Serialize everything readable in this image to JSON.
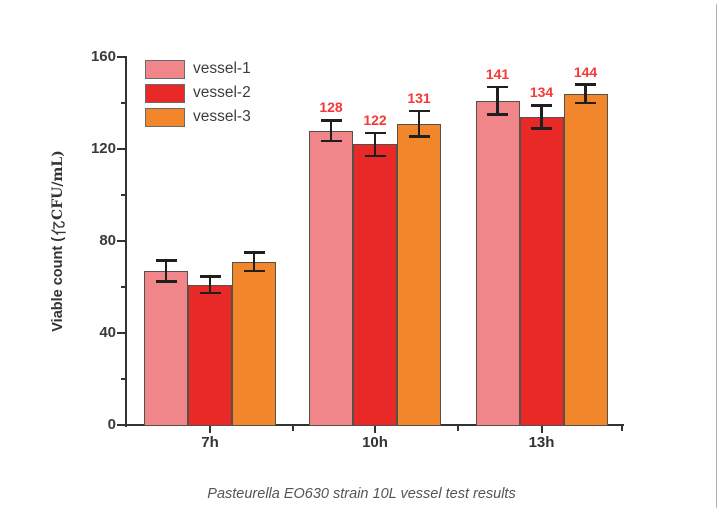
{
  "page": {
    "background": "#ffffff",
    "right_border_color": "#8f8f8f"
  },
  "caption": "Pasteurella EO630 strain 10L vessel test results",
  "labels": {
    "ylabel_prefix": "Viable count (",
    "ylabel_unit": "CFU/mL)"
  },
  "chart_data": {
    "type": "bar",
    "title": "",
    "xlabel": "",
    "ylabel": "Viable count (亿CFU/mL)",
    "ylim": [
      0,
      160
    ],
    "yticks": [
      0,
      40,
      80,
      120,
      160
    ],
    "minor_yticks": [
      20,
      60,
      100,
      140
    ],
    "categories": [
      "7h",
      "10h",
      "13h"
    ],
    "grid": false,
    "legend_position": "top-left inside plot",
    "axis_color": "#333333",
    "bar_border_color": "#55504a",
    "error_bar_color": "#1f1f1f",
    "value_label_color": "#f73737",
    "series": [
      {
        "name": "vessel-1",
        "color": "#F1868A",
        "values": [
          67,
          128,
          141
        ],
        "errors": [
          4.5,
          4.5,
          6
        ],
        "value_labels": [
          null,
          "128",
          "141"
        ]
      },
      {
        "name": "vessel-2",
        "color": "#E92828",
        "values": [
          61,
          122,
          134
        ],
        "errors": [
          3.5,
          5,
          5
        ],
        "value_labels": [
          null,
          "122",
          "134"
        ]
      },
      {
        "name": "vessel-3",
        "color": "#F1862B",
        "values": [
          71,
          131,
          144
        ],
        "errors": [
          4,
          5.5,
          4
        ],
        "value_labels": [
          null,
          "131",
          "144"
        ]
      }
    ]
  }
}
